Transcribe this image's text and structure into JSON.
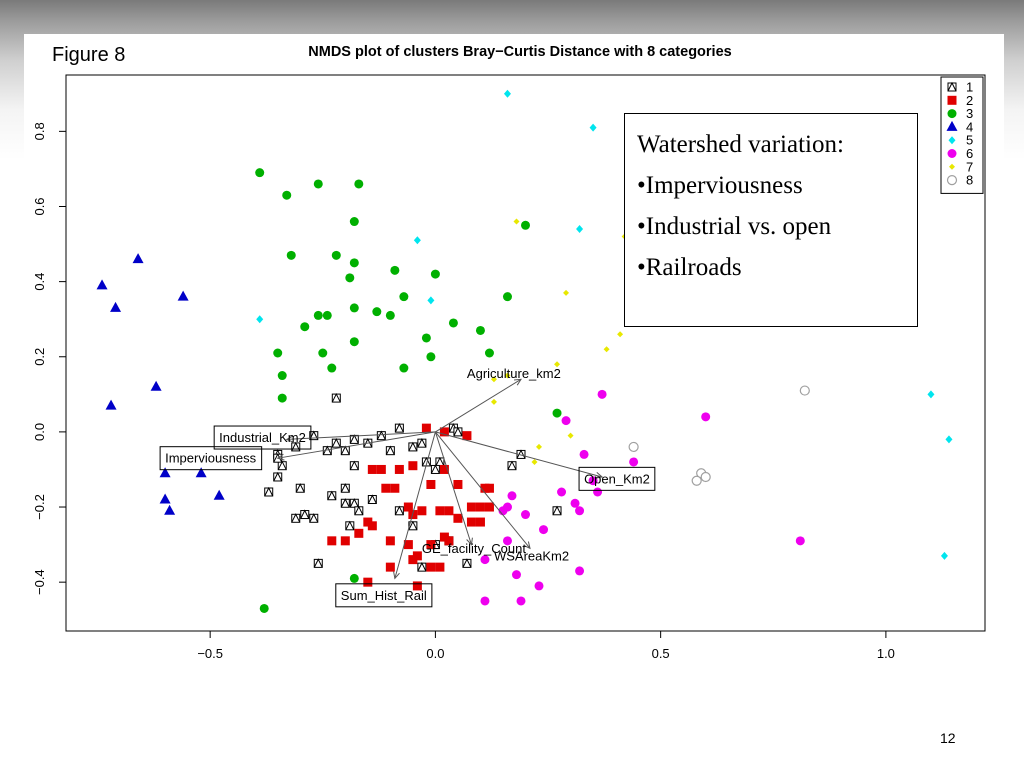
{
  "figure_label": "Figure 8",
  "page_number": "12",
  "callout": {
    "title": "Watershed variation:",
    "items": [
      "•Imperviousness",
      "•Industrial vs. open",
      "•Railroads"
    ]
  },
  "colors": {
    "1": "#000000",
    "2": "#e00000",
    "3": "#00b000",
    "4": "#0000c8",
    "5": "#00e5ee",
    "6": "#ee00ee",
    "7": "#e8e800",
    "8": "#a0a0a0",
    "arrow": "#555555"
  },
  "chart_data": {
    "type": "scatter",
    "title": "NMDS plot of clusters Bray−Curtis Distance with 8 categories",
    "xlim": [
      -0.82,
      1.22
    ],
    "ylim": [
      -0.53,
      0.95
    ],
    "xticks": [
      -0.5,
      0.0,
      0.5,
      1.0
    ],
    "xtick_labels": [
      "−0.5",
      "0.0",
      "0.5",
      "1.0"
    ],
    "yticks": [
      -0.4,
      -0.2,
      0.0,
      0.2,
      0.4,
      0.6,
      0.8
    ],
    "ytick_labels": [
      "−0.4",
      "−0.2",
      "0.0",
      "0.2",
      "0.4",
      "0.6",
      "0.8"
    ],
    "legend_position": "top-right",
    "legend": [
      "1",
      "2",
      "3",
      "4",
      "5",
      "6",
      "7",
      "8"
    ],
    "series": [
      {
        "name": "1",
        "marker": "boxed-x",
        "points": [
          [
            -0.22,
            0.09
          ],
          [
            -0.12,
            -0.01
          ],
          [
            -0.08,
            0.01
          ],
          [
            -0.1,
            -0.05
          ],
          [
            -0.15,
            -0.03
          ],
          [
            -0.18,
            -0.02
          ],
          [
            -0.2,
            -0.05
          ],
          [
            -0.22,
            -0.03
          ],
          [
            -0.24,
            -0.05
          ],
          [
            -0.27,
            -0.01
          ],
          [
            -0.31,
            -0.04
          ],
          [
            -0.35,
            -0.06
          ],
          [
            -0.34,
            -0.09
          ],
          [
            -0.35,
            -0.12
          ],
          [
            -0.37,
            -0.16
          ],
          [
            -0.3,
            -0.15
          ],
          [
            -0.23,
            -0.17
          ],
          [
            -0.2,
            -0.15
          ],
          [
            -0.18,
            -0.19
          ],
          [
            -0.19,
            -0.25
          ],
          [
            -0.14,
            -0.18
          ],
          [
            -0.29,
            -0.22
          ],
          [
            -0.27,
            -0.23
          ],
          [
            -0.31,
            -0.23
          ],
          [
            -0.26,
            -0.35
          ],
          [
            -0.2,
            -0.19
          ],
          [
            -0.17,
            -0.21
          ],
          [
            -0.05,
            -0.04
          ],
          [
            -0.03,
            -0.03
          ],
          [
            0.01,
            -0.08
          ],
          [
            0.04,
            0.01
          ],
          [
            -0.08,
            -0.21
          ],
          [
            -0.05,
            -0.25
          ],
          [
            0.0,
            -0.3
          ],
          [
            -0.03,
            -0.36
          ],
          [
            0.07,
            -0.35
          ],
          [
            0.17,
            -0.09
          ],
          [
            0.19,
            -0.06
          ],
          [
            0.27,
            -0.21
          ],
          [
            0.03,
            -0.29
          ],
          [
            -0.02,
            -0.08
          ],
          [
            0.0,
            -0.1
          ],
          [
            -0.18,
            -0.09
          ],
          [
            -0.35,
            -0.07
          ],
          [
            0.05,
            0.0
          ]
        ]
      },
      {
        "name": "2",
        "marker": "square",
        "points": [
          [
            -0.02,
            0.01
          ],
          [
            0.02,
            0.0
          ],
          [
            0.07,
            -0.01
          ],
          [
            -0.08,
            -0.1
          ],
          [
            -0.05,
            -0.09
          ],
          [
            -0.12,
            -0.1
          ],
          [
            -0.14,
            -0.1
          ],
          [
            -0.11,
            -0.15
          ],
          [
            -0.09,
            -0.15
          ],
          [
            0.02,
            -0.1
          ],
          [
            0.05,
            -0.14
          ],
          [
            0.11,
            -0.15
          ],
          [
            0.12,
            -0.15
          ],
          [
            -0.01,
            -0.14
          ],
          [
            0.08,
            -0.2
          ],
          [
            0.1,
            -0.2
          ],
          [
            0.12,
            -0.2
          ],
          [
            -0.06,
            -0.2
          ],
          [
            -0.05,
            -0.22
          ],
          [
            -0.03,
            -0.21
          ],
          [
            0.01,
            -0.21
          ],
          [
            0.03,
            -0.21
          ],
          [
            0.05,
            -0.23
          ],
          [
            0.08,
            -0.24
          ],
          [
            0.1,
            -0.24
          ],
          [
            -0.15,
            -0.24
          ],
          [
            -0.14,
            -0.25
          ],
          [
            -0.17,
            -0.27
          ],
          [
            -0.2,
            -0.29
          ],
          [
            -0.23,
            -0.29
          ],
          [
            -0.1,
            -0.29
          ],
          [
            -0.06,
            -0.3
          ],
          [
            -0.01,
            -0.3
          ],
          [
            0.02,
            -0.28
          ],
          [
            0.03,
            -0.29
          ],
          [
            -0.04,
            -0.33
          ],
          [
            -0.05,
            -0.34
          ],
          [
            -0.1,
            -0.36
          ],
          [
            -0.01,
            -0.36
          ],
          [
            0.01,
            -0.36
          ],
          [
            -0.15,
            -0.4
          ],
          [
            -0.04,
            -0.41
          ]
        ]
      },
      {
        "name": "3",
        "marker": "circle",
        "points": [
          [
            -0.39,
            0.69
          ],
          [
            -0.33,
            0.63
          ],
          [
            -0.26,
            0.66
          ],
          [
            -0.17,
            0.66
          ],
          [
            -0.18,
            0.56
          ],
          [
            0.2,
            0.55
          ],
          [
            -0.32,
            0.47
          ],
          [
            -0.22,
            0.47
          ],
          [
            -0.18,
            0.45
          ],
          [
            -0.19,
            0.41
          ],
          [
            -0.09,
            0.43
          ],
          [
            0.0,
            0.42
          ],
          [
            -0.07,
            0.36
          ],
          [
            0.16,
            0.36
          ],
          [
            -0.18,
            0.33
          ],
          [
            -0.26,
            0.31
          ],
          [
            -0.24,
            0.31
          ],
          [
            -0.13,
            0.32
          ],
          [
            -0.1,
            0.31
          ],
          [
            -0.29,
            0.28
          ],
          [
            0.04,
            0.29
          ],
          [
            0.1,
            0.27
          ],
          [
            -0.02,
            0.25
          ],
          [
            -0.18,
            0.24
          ],
          [
            -0.35,
            0.21
          ],
          [
            -0.25,
            0.21
          ],
          [
            -0.01,
            0.2
          ],
          [
            0.12,
            0.21
          ],
          [
            -0.34,
            0.15
          ],
          [
            -0.23,
            0.17
          ],
          [
            -0.07,
            0.17
          ],
          [
            -0.34,
            0.09
          ],
          [
            0.27,
            0.05
          ],
          [
            -0.18,
            -0.39
          ],
          [
            -0.38,
            -0.47
          ]
        ]
      },
      {
        "name": "4",
        "marker": "triangle",
        "points": [
          [
            -0.66,
            0.46
          ],
          [
            -0.74,
            0.39
          ],
          [
            -0.71,
            0.33
          ],
          [
            -0.56,
            0.36
          ],
          [
            -0.62,
            0.12
          ],
          [
            -0.72,
            0.07
          ],
          [
            -0.52,
            -0.11
          ],
          [
            -0.6,
            -0.11
          ],
          [
            -0.6,
            -0.18
          ],
          [
            -0.59,
            -0.21
          ],
          [
            -0.48,
            -0.17
          ]
        ]
      },
      {
        "name": "5",
        "marker": "diamond",
        "points": [
          [
            0.16,
            0.9
          ],
          [
            0.35,
            0.81
          ],
          [
            -0.04,
            0.51
          ],
          [
            0.32,
            0.54
          ],
          [
            -0.01,
            0.35
          ],
          [
            -0.39,
            0.3
          ],
          [
            1.1,
            0.1
          ],
          [
            1.14,
            -0.02
          ],
          [
            1.13,
            -0.33
          ]
        ]
      },
      {
        "name": "6",
        "marker": "circle",
        "points": [
          [
            0.37,
            0.1
          ],
          [
            0.6,
            0.04
          ],
          [
            0.29,
            0.03
          ],
          [
            0.33,
            -0.06
          ],
          [
            0.44,
            -0.08
          ],
          [
            0.35,
            -0.13
          ],
          [
            0.36,
            -0.16
          ],
          [
            0.28,
            -0.16
          ],
          [
            0.31,
            -0.19
          ],
          [
            0.32,
            -0.21
          ],
          [
            0.17,
            -0.17
          ],
          [
            0.16,
            -0.2
          ],
          [
            0.15,
            -0.21
          ],
          [
            0.2,
            -0.22
          ],
          [
            0.24,
            -0.26
          ],
          [
            0.16,
            -0.29
          ],
          [
            0.11,
            -0.34
          ],
          [
            0.32,
            -0.37
          ],
          [
            0.81,
            -0.29
          ],
          [
            0.18,
            -0.38
          ],
          [
            0.23,
            -0.41
          ],
          [
            0.11,
            -0.45
          ],
          [
            0.19,
            -0.45
          ]
        ]
      },
      {
        "name": "7",
        "marker": "diamond-small",
        "points": [
          [
            0.18,
            0.56
          ],
          [
            0.29,
            0.37
          ],
          [
            0.42,
            0.52
          ],
          [
            0.41,
            0.26
          ],
          [
            0.38,
            0.22
          ],
          [
            0.27,
            0.18
          ],
          [
            0.16,
            0.15
          ],
          [
            0.13,
            0.14
          ],
          [
            0.13,
            0.08
          ],
          [
            0.23,
            -0.04
          ],
          [
            0.3,
            -0.01
          ],
          [
            0.22,
            -0.08
          ]
        ]
      },
      {
        "name": "8",
        "marker": "open-circle",
        "points": [
          [
            0.44,
            -0.04
          ],
          [
            0.59,
            -0.11
          ],
          [
            0.6,
            -0.12
          ],
          [
            0.58,
            -0.13
          ],
          [
            0.82,
            0.11
          ]
        ]
      }
    ],
    "vectors": [
      {
        "label": "Agriculture_km2",
        "x": 0.19,
        "y": 0.14,
        "label_x": 0.07,
        "label_y": 0.155,
        "boxed": false
      },
      {
        "label": "Industrial_Km2",
        "x": -0.33,
        "y": -0.02,
        "label_x": -0.48,
        "label_y": -0.015,
        "boxed": true
      },
      {
        "label": "Imperviousness",
        "x": -0.35,
        "y": -0.07,
        "label_x": -0.6,
        "label_y": -0.07,
        "boxed": true
      },
      {
        "label": "Open_Km2",
        "x": 0.37,
        "y": -0.12,
        "label_x": 0.33,
        "label_y": -0.125,
        "boxed": true
      },
      {
        "label": "GE_facility_Count",
        "x": 0.08,
        "y": -0.3,
        "label_x": -0.03,
        "label_y": -0.31,
        "boxed": false
      },
      {
        "label": "WSAreaKm2",
        "x": 0.21,
        "y": -0.31,
        "label_x": 0.13,
        "label_y": -0.33,
        "boxed": false
      },
      {
        "label": "Sum_Hist_Rail",
        "x": -0.09,
        "y": -0.39,
        "label_x": -0.21,
        "label_y": -0.435,
        "boxed": true
      }
    ]
  }
}
